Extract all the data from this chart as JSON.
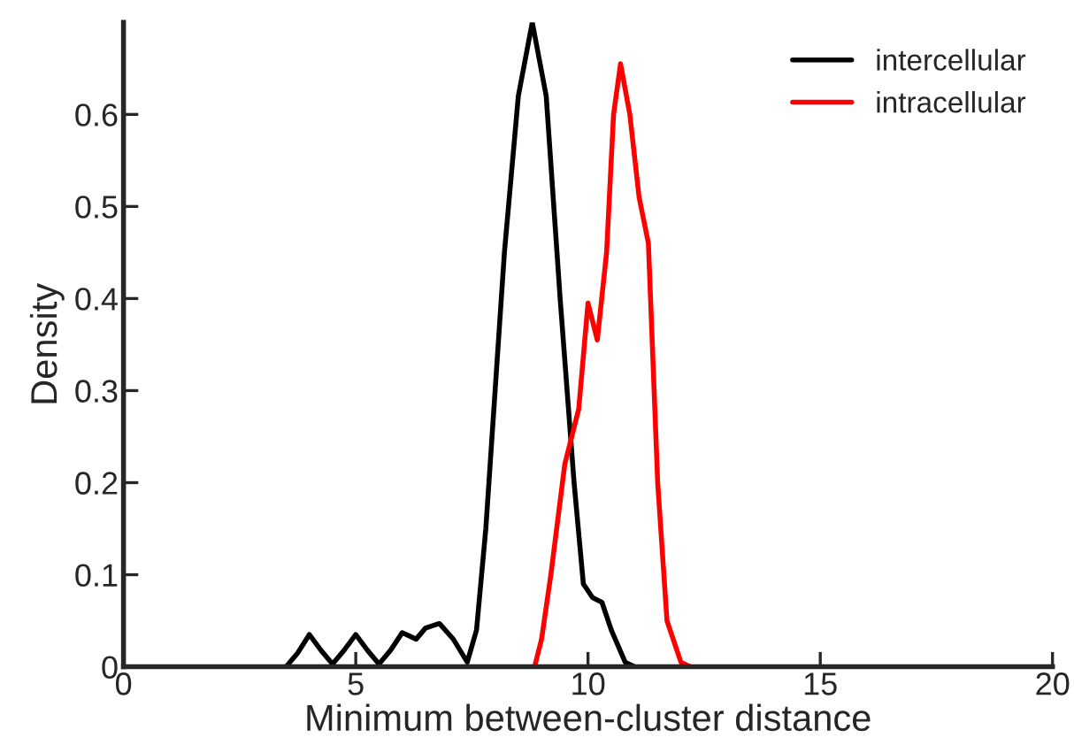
{
  "chart_data": {
    "type": "line",
    "xlabel": "Minimum between-cluster distance",
    "ylabel": "Density",
    "xlim": [
      0,
      20
    ],
    "xticks": [
      0,
      5,
      10,
      15,
      20
    ],
    "ylim": [
      0,
      0.7
    ],
    "yticks": [
      0,
      0.1,
      0.2,
      0.3,
      0.4,
      0.5,
      0.6
    ],
    "grid": false,
    "legend": "top right",
    "line_style": "solid",
    "marker": "none",
    "series": [
      {
        "name": "intercellular",
        "color": "#000000",
        "x": [
          3.5,
          3.75,
          4.0,
          4.25,
          4.5,
          4.75,
          5.0,
          5.25,
          5.5,
          5.75,
          6.0,
          6.3,
          6.5,
          6.8,
          7.1,
          7.4,
          7.6,
          7.8,
          8.0,
          8.2,
          8.5,
          8.8,
          9.1,
          9.4,
          9.7,
          9.9,
          10.1,
          10.3,
          10.5,
          10.8,
          11.0
        ],
        "values": [
          0,
          0.015,
          0.035,
          0.018,
          0.003,
          0.018,
          0.035,
          0.018,
          0.003,
          0.018,
          0.037,
          0.03,
          0.042,
          0.047,
          0.03,
          0.005,
          0.04,
          0.15,
          0.3,
          0.45,
          0.62,
          0.7,
          0.62,
          0.4,
          0.2,
          0.09,
          0.075,
          0.07,
          0.04,
          0.005,
          0
        ]
      },
      {
        "name": "intracellular",
        "color": "#ff0000",
        "x": [
          8.85,
          9.0,
          9.2,
          9.5,
          9.8,
          10.0,
          10.2,
          10.4,
          10.55,
          10.7,
          10.9,
          11.1,
          11.3,
          11.5,
          11.7,
          12.0,
          12.2
        ],
        "values": [
          0,
          0.03,
          0.1,
          0.22,
          0.28,
          0.395,
          0.355,
          0.45,
          0.6,
          0.655,
          0.6,
          0.51,
          0.46,
          0.2,
          0.05,
          0.005,
          0
        ]
      }
    ]
  }
}
